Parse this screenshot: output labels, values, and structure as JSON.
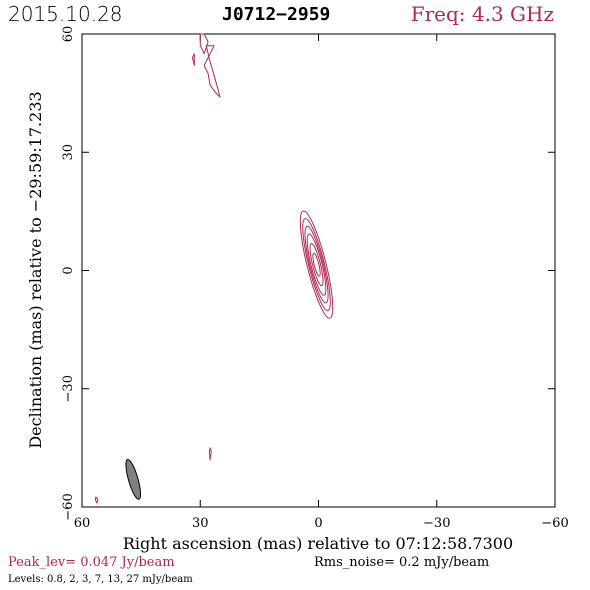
{
  "header": {
    "date": "2015.10.28",
    "source": "J0712−2959",
    "frequency": "Freq: 4.3 GHz"
  },
  "footer": {
    "peak_level": "Peak_lev=  0.047 Jy/beam",
    "rms_noise": "Rms_noise=   0.2 mJy/beam",
    "levels": "Levels: 0.8,    2,    3,    7,   13,   27 mJy/beam"
  },
  "chart_data": {
    "type": "contour",
    "xlabel": "Right ascension (mas) relative to 07:12:58.7300",
    "ylabel": "Declination (mas) relative to −29:59:17.233",
    "xlim": [
      60,
      -60
    ],
    "ylim": [
      -60,
      60
    ],
    "x_ticks": [
      60,
      30,
      0,
      -30,
      -60
    ],
    "x_tick_labels": [
      "60",
      "30",
      "0",
      "−30",
      "−60"
    ],
    "y_ticks": [
      -60,
      -30,
      0,
      30,
      60
    ],
    "y_tick_labels": [
      "−60",
      "−30",
      "0",
      "30",
      "60"
    ],
    "contour_color": "#b2284f",
    "levels_mjy_per_beam": [
      0.8,
      2,
      3,
      7,
      13,
      27
    ],
    "peak_jy_per_beam": 0.047,
    "rms_mjy_per_beam": 0.2,
    "main_component": {
      "center": [
        0.5,
        1.5
      ],
      "contours": [
        {
          "level": 0.8,
          "rx": 2.4,
          "ry": 14,
          "angle": -14
        },
        {
          "level": 2,
          "rx": 2.0,
          "ry": 12,
          "angle": -14
        },
        {
          "level": 3,
          "rx": 1.7,
          "ry": 10,
          "angle": -14
        },
        {
          "level": 7,
          "rx": 1.4,
          "ry": 8,
          "angle": -14
        },
        {
          "level": 13,
          "rx": 1.0,
          "ry": 5.5,
          "angle": -14
        },
        {
          "level": 27,
          "rx": 0.6,
          "ry": 3,
          "angle": -14
        }
      ]
    },
    "north_features": [
      {
        "points": [
          [
            29,
            55
          ],
          [
            28,
            58
          ],
          [
            29,
            60
          ],
          [
            30,
            60
          ],
          [
            30,
            57
          ]
        ]
      },
      {
        "points": [
          [
            26.5,
            57
          ],
          [
            29,
            52
          ],
          [
            28,
            50
          ],
          [
            27.5,
            47
          ],
          [
            26,
            45
          ],
          [
            25,
            44
          ],
          [
            25.5,
            46
          ],
          [
            27.5,
            53
          ],
          [
            28.5,
            57
          ]
        ]
      },
      {
        "points": [
          [
            31.5,
            55
          ],
          [
            32,
            54
          ],
          [
            31.5,
            52
          ],
          [
            31.5,
            54
          ]
        ]
      }
    ],
    "small_features": [
      {
        "points": [
          [
            27.5,
            -45
          ],
          [
            27.2,
            -46
          ],
          [
            27.5,
            -48
          ],
          [
            27.7,
            -46
          ]
        ]
      },
      {
        "points": [
          [
            56.5,
            -57.5
          ],
          [
            56,
            -58
          ],
          [
            56.2,
            -59
          ],
          [
            56.6,
            -58.2
          ]
        ]
      }
    ],
    "beam": {
      "center": [
        47,
        -53
      ],
      "major": 10.5,
      "minor": 2.4,
      "pa": -16,
      "color": "#808080"
    }
  }
}
